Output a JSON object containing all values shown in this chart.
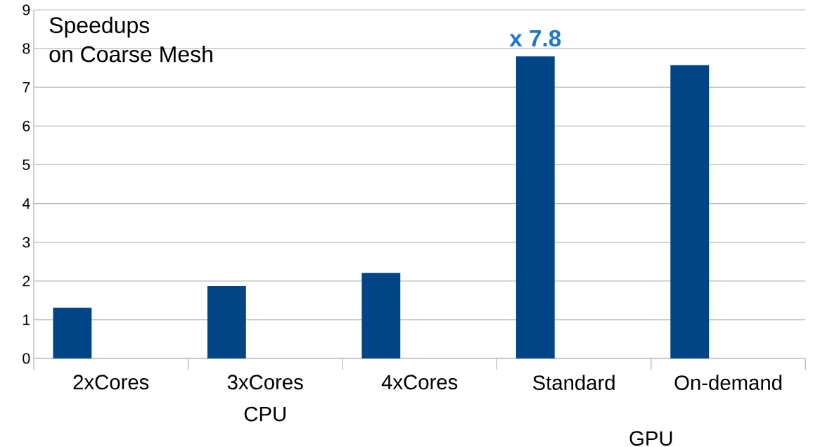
{
  "chart_data": {
    "type": "bar",
    "title": "Speedups",
    "subtitle": "on Coarse Mesh",
    "categories": [
      "2xCores",
      "3xCores",
      "4xCores",
      "Standard",
      "On-demand"
    ],
    "values": [
      1.31,
      1.87,
      2.21,
      7.8,
      7.57
    ],
    "color": "#004586",
    "ylim": [
      0,
      9
    ],
    "yticks": [
      0,
      1,
      2,
      3,
      4,
      5,
      6,
      7,
      8,
      9
    ],
    "grid": "y",
    "annotations": [
      "x 7.8",
      "CPU",
      "GPU"
    ]
  }
}
